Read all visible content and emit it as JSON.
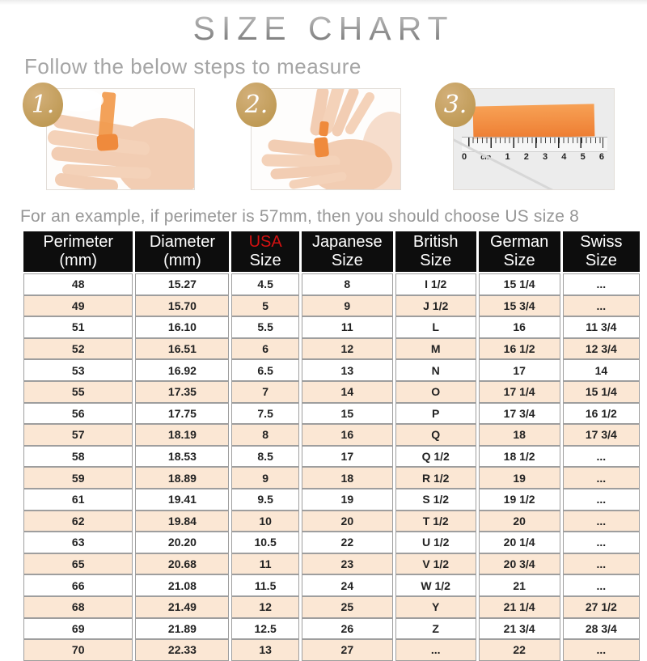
{
  "page": {
    "title": "SIZE CHART",
    "subtitle": "Follow the below steps to measure",
    "example_note": "For an example, if perimeter is 57mm, then you should choose US size 8"
  },
  "steps": [
    {
      "number": "1."
    },
    {
      "number": "2."
    },
    {
      "number": "3."
    }
  ],
  "step3_ruler_labels": [
    "0",
    "cm",
    "1",
    "2",
    "3",
    "4",
    "5",
    "6"
  ],
  "table": {
    "columns": [
      {
        "line1": "Perimeter",
        "line2": "(mm)",
        "accent": false
      },
      {
        "line1": "Diameter",
        "line2": "(mm)",
        "accent": false
      },
      {
        "line1": "USA",
        "line2": "Size",
        "accent": true
      },
      {
        "line1": "Japanese",
        "line2": "Size",
        "accent": false
      },
      {
        "line1": "British",
        "line2": "Size",
        "accent": false
      },
      {
        "line1": "German",
        "line2": "Size",
        "accent": false
      },
      {
        "line1": "Swiss",
        "line2": "Size",
        "accent": false
      }
    ],
    "rows": [
      [
        "48",
        "15.27",
        "4.5",
        "8",
        "I 1/2",
        "15 1/4",
        "..."
      ],
      [
        "49",
        "15.70",
        "5",
        "9",
        "J 1/2",
        "15 3/4",
        "..."
      ],
      [
        "51",
        "16.10",
        "5.5",
        "11",
        "L",
        "16",
        "11 3/4"
      ],
      [
        "52",
        "16.51",
        "6",
        "12",
        "M",
        "16 1/2",
        "12 3/4"
      ],
      [
        "53",
        "16.92",
        "6.5",
        "13",
        "N",
        "17",
        "14"
      ],
      [
        "55",
        "17.35",
        "7",
        "14",
        "O",
        "17 1/4",
        "15 1/4"
      ],
      [
        "56",
        "17.75",
        "7.5",
        "15",
        "P",
        "17 3/4",
        "16 1/2"
      ],
      [
        "57",
        "18.19",
        "8",
        "16",
        "Q",
        "18",
        "17 3/4"
      ],
      [
        "58",
        "18.53",
        "8.5",
        "17",
        "Q 1/2",
        "18 1/2",
        "..."
      ],
      [
        "59",
        "18.89",
        "9",
        "18",
        "R 1/2",
        "19",
        "..."
      ],
      [
        "61",
        "19.41",
        "9.5",
        "19",
        "S 1/2",
        "19 1/2",
        "..."
      ],
      [
        "62",
        "19.84",
        "10",
        "20",
        "T 1/2",
        "20",
        "..."
      ],
      [
        "63",
        "20.20",
        "10.5",
        "22",
        "U 1/2",
        "20 1/4",
        "..."
      ],
      [
        "65",
        "20.68",
        "11",
        "23",
        "V 1/2",
        "20 3/4",
        "..."
      ],
      [
        "66",
        "21.08",
        "11.5",
        "24",
        "W 1/2",
        "21",
        "..."
      ],
      [
        "68",
        "21.49",
        "12",
        "25",
        "Y",
        "21 1/4",
        "27 1/2"
      ],
      [
        "69",
        "21.89",
        "12.5",
        "26",
        "Z",
        "21 3/4",
        "28 3/4"
      ],
      [
        "70",
        "22.33",
        "13",
        "27",
        "...",
        "22",
        "..."
      ]
    ]
  },
  "colors": {
    "accent_red": "#d31111",
    "header_bg": "#0d0d0d",
    "row_alt_peach": "#fbe7d4",
    "badge_gold": "#c7a267",
    "tape_orange": "#ef8a3c",
    "title_gray": "#8d8d8d"
  }
}
